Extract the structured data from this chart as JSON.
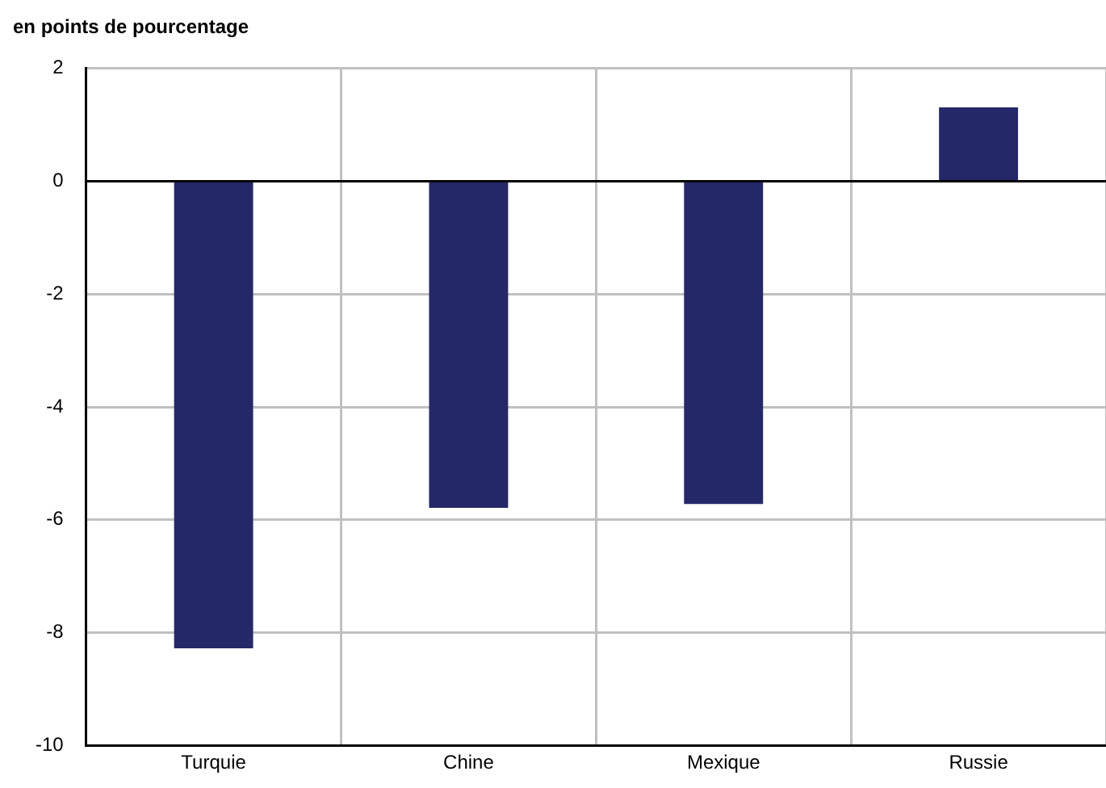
{
  "chart_data": {
    "type": "bar",
    "ylabel": "en points de pourcentage",
    "categories": [
      "Turquie",
      "Chine",
      "Mexique",
      "Russie"
    ],
    "values": [
      -8.28,
      -5.79,
      -5.72,
      1.31
    ],
    "color": "#252868",
    "ylim": [
      -10,
      2
    ],
    "yticks": [
      -10,
      -8,
      -6,
      -4,
      -2,
      0,
      2
    ],
    "grid": true
  }
}
